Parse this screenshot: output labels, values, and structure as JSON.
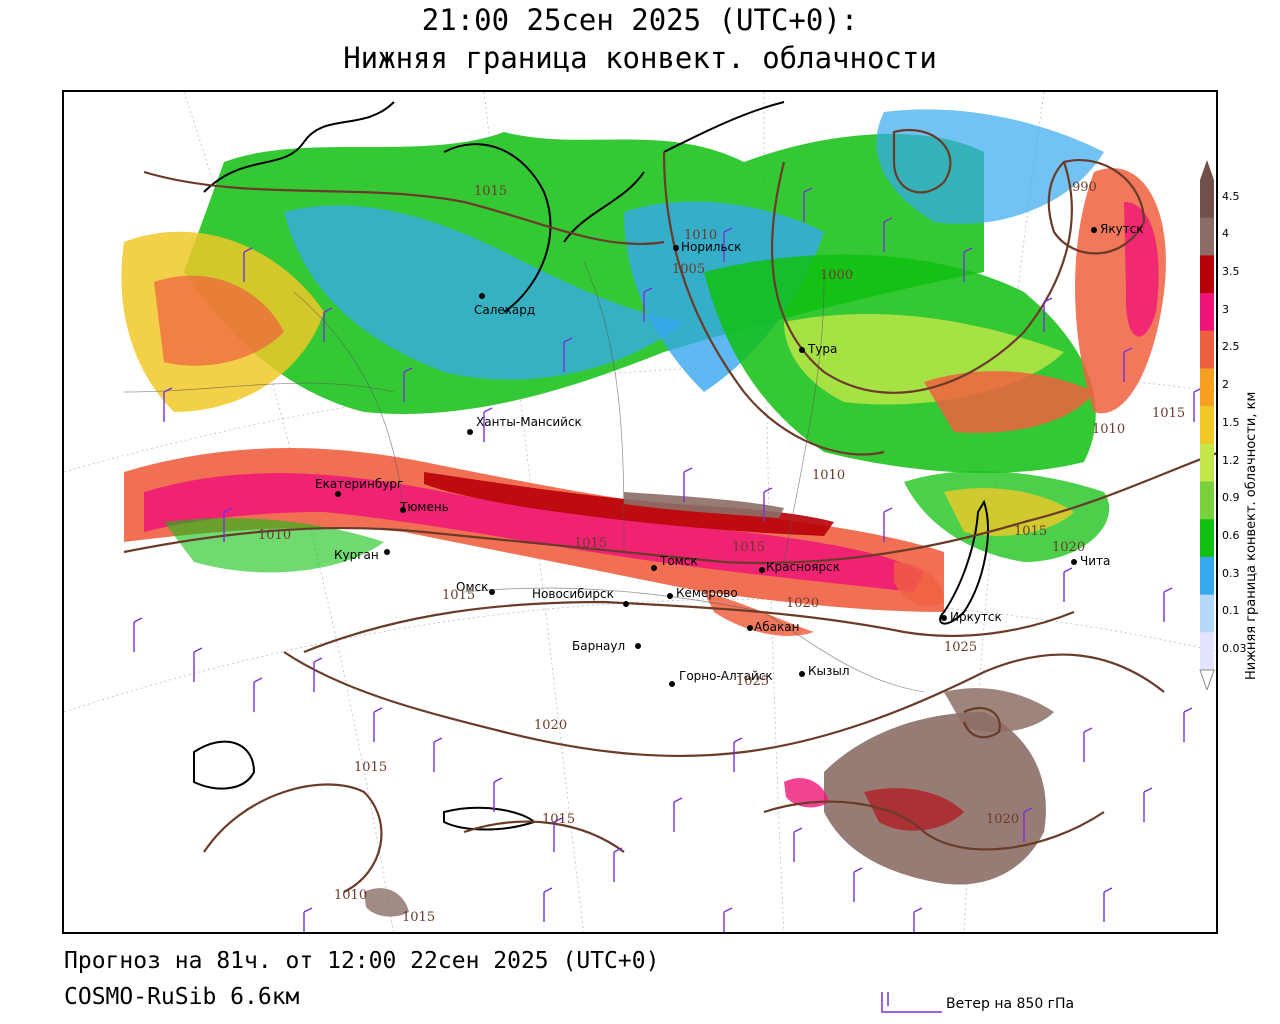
{
  "header": {
    "title": "21:00 25сен 2025 (UTC+0):",
    "subtitle": "Нижняя граница конвект. облачности"
  },
  "footer": {
    "forecast": "Прогноз на 81ч. от 12:00 22сен 2025 (UTC+0)",
    "model": "COSMO-RuSib 6.6км",
    "wind_legend": "Ветер на 850 гПа"
  },
  "colorbar": {
    "title": "Нижняя граница конвект. облачности, км",
    "levels": [
      "0.03",
      "0.1",
      "0.3",
      "0.6",
      "0.9",
      "1.2",
      "1.5",
      "2",
      "2.5",
      "3",
      "3.5",
      "4",
      "4.5"
    ],
    "colors": [
      "#e3e3ff",
      "#b4d8f8",
      "#36a8f0",
      "#10c010",
      "#7ad23a",
      "#c4e84a",
      "#f0c828",
      "#f5a020",
      "#f06040",
      "#f01478",
      "#b80008",
      "#8c6e66",
      "#705048"
    ]
  },
  "cities": [
    {
      "name": "Норильск"
    },
    {
      "name": "Якутск"
    },
    {
      "name": "Салехард"
    },
    {
      "name": "Тура"
    },
    {
      "name": "Ханты-Мансийск"
    },
    {
      "name": "Екатеринбург"
    },
    {
      "name": "Тюмень"
    },
    {
      "name": "Курган"
    },
    {
      "name": "Омск"
    },
    {
      "name": "Новосибирск"
    },
    {
      "name": "Томск"
    },
    {
      "name": "Кемерово"
    },
    {
      "name": "Красноярск"
    },
    {
      "name": "Абакан"
    },
    {
      "name": "Барнаул"
    },
    {
      "name": "Горно-Алтайск"
    },
    {
      "name": "Кызыл"
    },
    {
      "name": "Иркутск"
    },
    {
      "name": "Чита"
    }
  ],
  "isobars": [
    "1015",
    "1010",
    "1005",
    "1000",
    "990",
    "1015",
    "1010",
    "1010",
    "1010",
    "1015",
    "1015",
    "1015",
    "1020",
    "1020",
    "1015",
    "1025",
    "1025",
    "1020",
    "1015",
    "1015",
    "1020",
    "1010",
    "1015"
  ]
}
